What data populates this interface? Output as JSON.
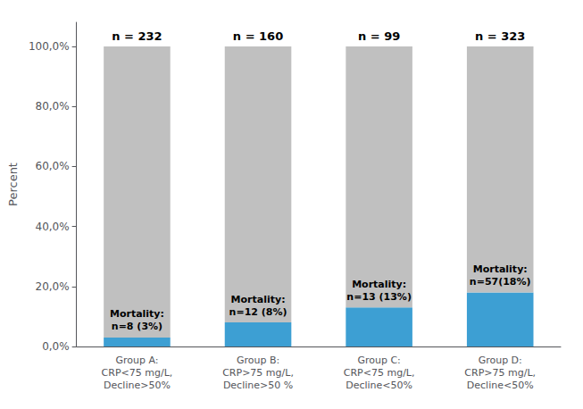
{
  "chart_data": {
    "type": "bar",
    "stacked": true,
    "ylabel": "Percent",
    "categories": [
      "Group A:\nCRP<75 mg/L,\nDecline>50%",
      "Group B:\nCRP>75 mg/L,\nDecline>50 %",
      "Group C:\nCRP<75 mg/L,\nDecline<50%",
      "Group D:\nCRP>75 mg/L,\nDecline<50%"
    ],
    "series": [
      {
        "color": "#3d9fd3",
        "values": [
          3,
          8,
          13,
          18
        ],
        "labels": [
          "Mortality:\nn=8 (3%)",
          "Mortality:\nn=12 (8%)",
          "Mortality:\nn=13 (13%)",
          "Mortality:\nn=57(18%)"
        ]
      },
      {
        "color": "#c0c0c0",
        "values": [
          97,
          92,
          87,
          82
        ]
      }
    ],
    "annotations": [
      {
        "text": "n = 232",
        "category": "Group A:\nCRP<75 mg/L,\nDecline>50%"
      },
      {
        "text": "n = 160",
        "category": "Group B:\nCRP>75 mg/L,\nDecline>50 %"
      },
      {
        "text": "n = 99",
        "category": "Group C:\nCRP<75 mg/L,\nDecline<50%"
      },
      {
        "text": "n = 323",
        "category": "Group D:\nCRP>75 mg/L,\nDecline<50%"
      }
    ],
    "ylim": [
      0,
      108
    ],
    "yticks": [
      {
        "value": 0,
        "label": "0,0%"
      },
      {
        "value": 20,
        "label": "20,0%"
      },
      {
        "value": 40,
        "label": "40,0%"
      },
      {
        "value": 60,
        "label": "60,0%"
      },
      {
        "value": 80,
        "label": "80,0%"
      },
      {
        "value": 100,
        "label": "100,0%"
      }
    ],
    "grid": false
  }
}
